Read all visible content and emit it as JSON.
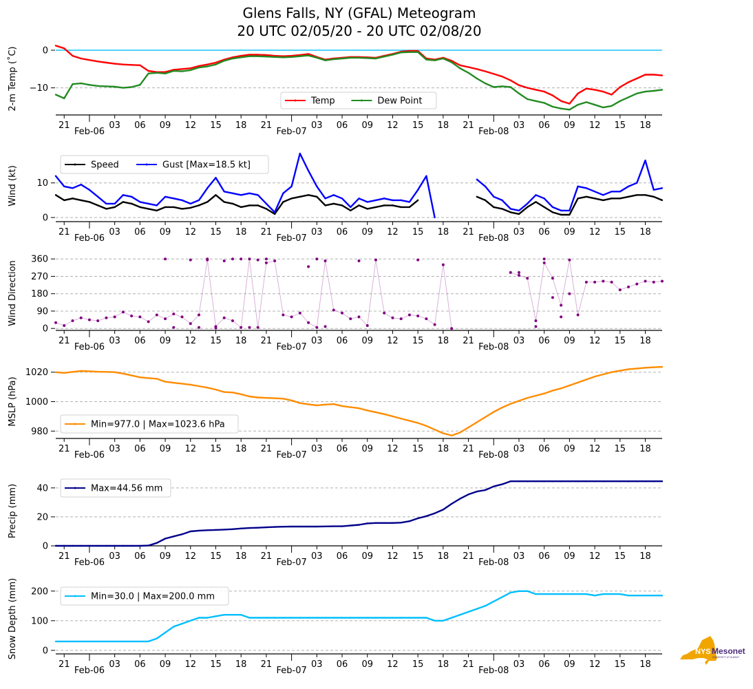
{
  "title": {
    "line1": "Glens Falls, NY (GFAL) Meteogram",
    "line2": "20 UTC 02/05/20 - 20 UTC 02/08/20"
  },
  "logo": {
    "text_main": "NYS",
    "text_brand": "Mesonet",
    "text_sub": "UNIVERSITY AT ALBANY",
    "shape_color": "#f0a500",
    "brand_color": "#4b2a7b"
  },
  "x_axis": {
    "start_hour": 0,
    "end_hour": 72,
    "hour_ticks": [
      {
        "h": 1,
        "label": "21"
      },
      {
        "h": 7,
        "label": "03"
      },
      {
        "h": 10,
        "label": "06"
      },
      {
        "h": 13,
        "label": "09"
      },
      {
        "h": 16,
        "label": "12"
      },
      {
        "h": 19,
        "label": "15"
      },
      {
        "h": 22,
        "label": "18"
      },
      {
        "h": 25,
        "label": "21"
      },
      {
        "h": 31,
        "label": "03"
      },
      {
        "h": 34,
        "label": "06"
      },
      {
        "h": 37,
        "label": "09"
      },
      {
        "h": 40,
        "label": "12"
      },
      {
        "h": 43,
        "label": "15"
      },
      {
        "h": 46,
        "label": "18"
      },
      {
        "h": 49,
        "label": "21"
      },
      {
        "h": 55,
        "label": "03"
      },
      {
        "h": 58,
        "label": "06"
      },
      {
        "h": 61,
        "label": "09"
      },
      {
        "h": 64,
        "label": "12"
      },
      {
        "h": 67,
        "label": "15"
      },
      {
        "h": 70,
        "label": "18"
      }
    ],
    "day_ticks": [
      {
        "h": 4,
        "label": "Feb-06"
      },
      {
        "h": 28,
        "label": "Feb-07"
      },
      {
        "h": 52,
        "label": "Feb-08"
      }
    ]
  },
  "chart_data": [
    {
      "id": "temp",
      "type": "line",
      "ylabel": "2-m Temp ($^\\circ$C)",
      "ylabel_display": "2-m Temp (˚C)",
      "ylim": [
        -17.2,
        2
      ],
      "yticks": [
        0,
        -10
      ],
      "ytick_labels": [
        "0",
        "−10"
      ],
      "grid_y": [
        -10
      ],
      "reference_line": {
        "y": 0,
        "color": "#00bfff"
      },
      "legend": {
        "placement": "lower-center",
        "entries": [
          "Temp",
          "Dew Point"
        ]
      },
      "series": [
        {
          "name": "Temp",
          "color": "#ff0000",
          "values": [
            1.2,
            0.5,
            -1.5,
            -2.2,
            -2.6,
            -3.0,
            -3.3,
            -3.6,
            -3.8,
            -3.9,
            -4.0,
            -5.5,
            -5.8,
            -5.8,
            -5.2,
            -5.0,
            -4.8,
            -4.2,
            -3.8,
            -3.3,
            -2.5,
            -1.9,
            -1.5,
            -1.2,
            -1.2,
            -1.3,
            -1.5,
            -1.6,
            -1.5,
            -1.3,
            -1.0,
            -1.8,
            -2.5,
            -2.2,
            -2.0,
            -1.8,
            -1.8,
            -1.9,
            -2.0,
            -1.5,
            -1.0,
            -0.4,
            -0.2,
            -0.2,
            -2.2,
            -2.5,
            -2.0,
            -2.8,
            -4.0,
            -4.5,
            -5.0,
            -5.6,
            -6.3,
            -7.0,
            -8.0,
            -9.3,
            -10.0,
            -10.5,
            -11.0,
            -12.0,
            -13.5,
            -14.2,
            -11.5,
            -10.2,
            -10.5,
            -11.0,
            -11.8,
            -9.8,
            -8.5,
            -7.5,
            -6.5,
            -6.5,
            -6.7
          ]
        },
        {
          "name": "Dew Point",
          "color": "#228b22",
          "values": [
            -11.8,
            -12.8,
            -9.0,
            -8.8,
            -9.2,
            -9.5,
            -9.6,
            -9.7,
            -10.0,
            -9.8,
            -9.2,
            -6.2,
            -6.0,
            -6.2,
            -5.5,
            -5.6,
            -5.3,
            -4.6,
            -4.3,
            -3.8,
            -2.8,
            -2.2,
            -1.9,
            -1.6,
            -1.6,
            -1.7,
            -1.8,
            -1.9,
            -1.8,
            -1.6,
            -1.4,
            -2.0,
            -2.7,
            -2.4,
            -2.2,
            -2.0,
            -2.0,
            -2.1,
            -2.2,
            -1.7,
            -1.2,
            -0.6,
            -0.5,
            -0.5,
            -2.5,
            -2.7,
            -2.2,
            -3.2,
            -4.8,
            -6.0,
            -7.5,
            -8.8,
            -9.8,
            -9.6,
            -9.8,
            -11.5,
            -13.0,
            -13.5,
            -14.0,
            -15.0,
            -15.5,
            -15.8,
            -14.5,
            -13.8,
            -14.5,
            -15.2,
            -14.8,
            -13.5,
            -12.5,
            -11.5,
            -11.0,
            -10.8,
            -10.5
          ]
        }
      ]
    },
    {
      "id": "wind",
      "type": "line",
      "ylabel": "Wind (kt)",
      "ylim": [
        -1.2,
        19.5
      ],
      "yticks": [
        0,
        10
      ],
      "ytick_labels": [
        "0",
        "10"
      ],
      "grid_y": [
        0,
        10
      ],
      "legend": {
        "placement": "upper-left",
        "entries": [
          "Speed",
          "Gust [Max=18.5 kt]"
        ]
      },
      "series": [
        {
          "name": "Speed",
          "color": "#000000",
          "values": [
            6.5,
            5.0,
            5.5,
            5.0,
            4.5,
            3.5,
            2.5,
            3.0,
            4.5,
            4.0,
            3.0,
            2.5,
            2.0,
            3.0,
            3.0,
            2.5,
            2.8,
            3.5,
            4.5,
            6.5,
            4.5,
            4.0,
            3.0,
            3.5,
            3.5,
            2.5,
            1.0,
            4.5,
            5.5,
            6.0,
            6.5,
            6.0,
            3.5,
            4.0,
            3.5,
            2.0,
            3.5,
            2.5,
            3.0,
            3.5,
            3.5,
            3.0,
            3.0,
            5.0,
            null,
            null,
            null,
            null,
            null,
            null,
            6.0,
            5.0,
            3.0,
            2.5,
            1.5,
            1.0,
            3.0,
            4.5,
            3.0,
            1.5,
            0.8,
            0.8,
            5.5,
            6.0,
            5.5,
            5.0,
            5.5,
            5.5,
            6.0,
            6.5,
            6.5,
            6.0,
            5.0
          ]
        },
        {
          "name": "Gust [Max=18.5 kt]",
          "color": "#0000ff",
          "values": [
            12.0,
            9.0,
            8.5,
            9.5,
            8.0,
            6.0,
            4.0,
            4.0,
            6.5,
            6.0,
            4.5,
            4.0,
            3.5,
            6.0,
            5.5,
            5.0,
            4.0,
            5.0,
            8.5,
            11.5,
            7.5,
            7.0,
            6.5,
            7.0,
            6.5,
            4.0,
            1.5,
            7.0,
            9.0,
            18.5,
            13.5,
            9.0,
            5.5,
            6.5,
            5.5,
            3.0,
            5.5,
            4.5,
            5.0,
            5.5,
            5.0,
            5.0,
            4.5,
            8.0,
            12.0,
            0.0,
            null,
            null,
            null,
            null,
            11.0,
            9.0,
            6.0,
            5.0,
            2.5,
            2.0,
            4.0,
            6.5,
            5.5,
            3.0,
            2.0,
            2.0,
            9.0,
            8.5,
            7.5,
            6.5,
            7.5,
            7.5,
            9.0,
            10.0,
            16.5,
            8.0,
            8.5
          ]
        }
      ]
    },
    {
      "id": "wind_direction",
      "type": "scatter",
      "ylabel": "Wind Direction",
      "ylim": [
        -10,
        375
      ],
      "yticks": [
        0,
        90,
        180,
        270,
        360
      ],
      "ytick_labels": [
        "0",
        "90",
        "180",
        "270",
        "360"
      ],
      "grid_y": [
        0,
        90,
        180,
        270,
        360
      ],
      "series": [
        {
          "name": "Wind Direction",
          "color": "#800080",
          "values": [
            30,
            15,
            40,
            55,
            45,
            40,
            55,
            60,
            85,
            65,
            60,
            35,
            70,
            50,
            75,
            60,
            25,
            70,
            355,
            10,
            55,
            40,
            5,
            360,
            5,
            340,
            350,
            70,
            60,
            80,
            30,
            5,
            350,
            95,
            80,
            50,
            60,
            15,
            355,
            80,
            55,
            50,
            70,
            65,
            50,
            20,
            330,
            0,
            null,
            null,
            null,
            null,
            null,
            null,
            290,
            275,
            260,
            40,
            340,
            260,
            120,
            355,
            70,
            240,
            240,
            245,
            240,
            200,
            215,
            230,
            245,
            240,
            245
          ]
        },
        {
          "name": "Wind Direction (aux)",
          "color": "#800080",
          "values": [
            null,
            null,
            null,
            null,
            null,
            null,
            null,
            null,
            null,
            null,
            null,
            null,
            null,
            360,
            5,
            null,
            355,
            5,
            360,
            2,
            350,
            360,
            360,
            5,
            355,
            360,
            null,
            null,
            null,
            null,
            320,
            360,
            10,
            null,
            null,
            null,
            350,
            null,
            null,
            null,
            null,
            null,
            null,
            355,
            null,
            null,
            null,
            null,
            null,
            null,
            null,
            null,
            null,
            null,
            null,
            290,
            null,
            10,
            360,
            160,
            60,
            180,
            null,
            null,
            null,
            null,
            null,
            null,
            null,
            null,
            null,
            null,
            null
          ]
        }
      ]
    },
    {
      "id": "mslp",
      "type": "line",
      "ylabel": "MSLP (hPa)",
      "ylim": [
        975,
        1025
      ],
      "yticks": [
        980,
        1000,
        1020
      ],
      "ytick_labels": [
        "980",
        "1000",
        "1020"
      ],
      "grid_y": [
        980,
        1000,
        1020
      ],
      "legend": {
        "placement": "lower-left",
        "entries": [
          "Min=977.0 | Max=1023.6 hPa"
        ]
      },
      "series": [
        {
          "name": "Min=977.0 | Max=1023.6 hPa",
          "color": "#ff8c00",
          "values": [
            1020.0,
            1019.5,
            1020.2,
            1020.8,
            1020.6,
            1020.3,
            1020.2,
            1020.0,
            1019.0,
            1017.8,
            1016.5,
            1016.0,
            1015.5,
            1013.5,
            1012.8,
            1012.2,
            1011.5,
            1010.5,
            1009.5,
            1008.2,
            1006.5,
            1006.2,
            1005.0,
            1003.5,
            1002.8,
            1002.5,
            1002.3,
            1002.0,
            1000.8,
            999.0,
            998.2,
            997.5,
            998.0,
            998.3,
            997.0,
            996.2,
            995.5,
            994.0,
            992.8,
            991.5,
            990.0,
            988.5,
            987.0,
            985.5,
            983.5,
            981.0,
            978.5,
            977.0,
            979.0,
            982.5,
            986.0,
            989.5,
            993.0,
            996.0,
            998.5,
            1000.5,
            1002.5,
            1004.0,
            1005.5,
            1007.5,
            1009.0,
            1011.0,
            1013.0,
            1015.0,
            1017.0,
            1018.5,
            1020.0,
            1021.0,
            1022.0,
            1022.5,
            1023.0,
            1023.3,
            1023.6
          ]
        }
      ]
    },
    {
      "id": "precip",
      "type": "line",
      "ylabel": "Precip (mm)",
      "ylim": [
        0,
        48
      ],
      "yticks": [
        0,
        20,
        40
      ],
      "ytick_labels": [
        "0",
        "20",
        "40"
      ],
      "grid_y": [
        20,
        40
      ],
      "legend": {
        "placement": "upper-left",
        "entries": [
          "Max=44.56 mm"
        ]
      },
      "series": [
        {
          "name": "Max=44.56 mm",
          "color": "#00008b",
          "values": [
            0,
            0,
            0,
            0,
            0,
            0,
            0,
            0,
            0,
            0,
            0,
            0.2,
            2.0,
            5.0,
            6.5,
            8.0,
            10.0,
            10.5,
            10.8,
            11.0,
            11.2,
            11.5,
            12.0,
            12.3,
            12.5,
            12.8,
            13.0,
            13.2,
            13.3,
            13.3,
            13.3,
            13.3,
            13.4,
            13.5,
            13.5,
            14.0,
            14.5,
            15.5,
            15.8,
            15.8,
            15.8,
            16.0,
            17.0,
            19.0,
            20.5,
            22.5,
            25.0,
            29.0,
            32.5,
            35.5,
            37.5,
            38.5,
            41.0,
            42.5,
            44.56,
            44.56,
            44.56,
            44.56,
            44.56,
            44.56,
            44.56,
            44.56,
            44.56,
            44.56,
            44.56,
            44.56,
            44.56,
            44.56,
            44.56,
            44.56,
            44.56,
            44.56,
            44.56
          ]
        }
      ]
    },
    {
      "id": "snow_depth",
      "type": "line",
      "ylabel": "Snow Depth (mm)",
      "ylim": [
        -12,
        225
      ],
      "yticks": [
        0,
        100,
        200
      ],
      "ytick_labels": [
        "0",
        "100",
        "200"
      ],
      "grid_y": [
        0,
        100,
        200
      ],
      "legend": {
        "placement": "upper-left",
        "entries": [
          "Min=30.0 | Max=200.0 mm"
        ]
      },
      "series": [
        {
          "name": "Min=30.0 | Max=200.0 mm",
          "color": "#00bfff",
          "values": [
            30,
            30,
            30,
            30,
            30,
            30,
            30,
            30,
            30,
            30,
            30,
            30,
            40,
            60,
            80,
            90,
            100,
            110,
            110,
            115,
            120,
            120,
            120,
            110,
            110,
            110,
            110,
            110,
            110,
            110,
            110,
            110,
            110,
            110,
            110,
            110,
            110,
            110,
            110,
            110,
            110,
            110,
            110,
            110,
            110,
            100,
            100,
            110,
            120,
            130,
            140,
            150,
            165,
            180,
            195,
            200,
            200,
            190,
            190,
            190,
            190,
            190,
            190,
            190,
            185,
            190,
            190,
            190,
            185,
            185,
            185,
            185,
            185
          ]
        }
      ]
    }
  ]
}
